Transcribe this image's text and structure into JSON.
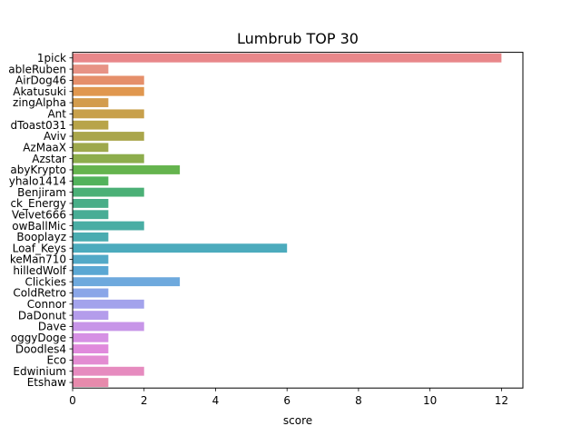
{
  "chart_data": {
    "type": "bar",
    "orientation": "horizontal",
    "title": "Lumbrub TOP 30",
    "xlabel": "score",
    "ylabel": "",
    "xlim": [
      0,
      12.6
    ],
    "xticks": [
      "0",
      "2",
      "4",
      "6",
      "8",
      "10",
      "12"
    ],
    "grid": false,
    "categories": [
      "1pick",
      "ableRuben",
      "AirDog46",
      "Akatusuki",
      "zingAlpha",
      "Ant",
      "dToast031",
      "Aviv",
      "AzMaaX",
      "Azstar",
      "abyKrypto",
      "yhalo1414",
      "Benjiram",
      "ck_Energy",
      "Velvet666",
      "owBallMic",
      "Booplayz",
      "Loaf_Keys",
      "keMan710",
      "hilledWolf",
      "Clickies",
      "ColdRetro",
      "Connor",
      "DaDonut",
      "Dave",
      "oggyDoge",
      "Doodles4",
      "Eco",
      "Edwinium",
      "Etshaw"
    ],
    "values": [
      12,
      1,
      2,
      2,
      1,
      2,
      1,
      2,
      1,
      2,
      3,
      1,
      2,
      1,
      1,
      2,
      1,
      6,
      1,
      1,
      3,
      1,
      2,
      1,
      2,
      1,
      1,
      1,
      2,
      1
    ],
    "colors": [
      "#e8878a",
      "#e79385",
      "#e58f6a",
      "#e0974f",
      "#d39c4d",
      "#c8a04b",
      "#b8a449",
      "#aaa64b",
      "#9ea84c",
      "#8dad4c",
      "#65b44e",
      "#52b25b",
      "#4bb076",
      "#49ae88",
      "#48ad95",
      "#49ada4",
      "#4aacb0",
      "#4cabbd",
      "#52a9c7",
      "#5aa7d3",
      "#6ea9dd",
      "#8aa6e8",
      "#a3a3ec",
      "#b49ceb",
      "#c795e8",
      "#d690e4",
      "#e08adc",
      "#e38cd2",
      "#e68bbf",
      "#e78aac"
    ]
  }
}
